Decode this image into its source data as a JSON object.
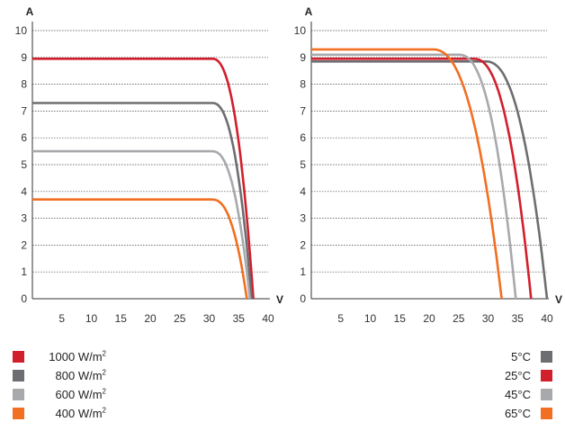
{
  "chart_data": [
    {
      "type": "line",
      "ylabel": "A",
      "xlabel": "V",
      "xlim": [
        0,
        40
      ],
      "ylim": [
        0,
        10
      ],
      "xticks": [
        "5",
        "10",
        "15",
        "20",
        "25",
        "30",
        "35",
        "40"
      ],
      "yticks": [
        "0",
        "1",
        "2",
        "3",
        "4",
        "5",
        "6",
        "7",
        "8",
        "9",
        "10"
      ],
      "grid": "horizontal dotted",
      "series": [
        {
          "name": "1000 W/m2",
          "color": "#d11f2c",
          "isc": 8.95,
          "voc": 37.5,
          "knee": 30.5
        },
        {
          "name": "800 W/m2",
          "color": "#6d6e71",
          "isc": 7.3,
          "voc": 37.2,
          "knee": 30.5
        },
        {
          "name": "600 W/m2",
          "color": "#a7a9ac",
          "isc": 5.5,
          "voc": 36.9,
          "knee": 30.5
        },
        {
          "name": "400 W/m2",
          "color": "#f26e21",
          "isc": 3.7,
          "voc": 36.4,
          "knee": 30.5
        }
      ]
    },
    {
      "type": "line",
      "ylabel": "A",
      "xlabel": "V",
      "xlim": [
        0,
        40
      ],
      "ylim": [
        0,
        10
      ],
      "xticks": [
        "5",
        "10",
        "15",
        "20",
        "25",
        "30",
        "35",
        "40"
      ],
      "yticks": [
        "0",
        "1",
        "2",
        "3",
        "4",
        "5",
        "6",
        "7",
        "8",
        "9",
        "10"
      ],
      "grid": "horizontal dotted",
      "series": [
        {
          "name": "5°C",
          "color": "#6d6e71",
          "isc": 8.85,
          "voc": 40.0,
          "knee": 29.5
        },
        {
          "name": "25°C",
          "color": "#d11f2c",
          "isc": 8.95,
          "voc": 37.3,
          "knee": 27.5
        },
        {
          "name": "45°C",
          "color": "#a7a9ac",
          "isc": 9.1,
          "voc": 34.7,
          "knee": 25.0
        },
        {
          "name": "65°C",
          "color": "#f26e21",
          "isc": 9.3,
          "voc": 32.3,
          "knee": 20.5
        }
      ]
    }
  ],
  "legend_left": [
    {
      "label": "1000 W/m",
      "sup": "2",
      "color": "#d11f2c"
    },
    {
      "label": "800 W/m",
      "sup": "2",
      "color": "#6d6e71"
    },
    {
      "label": "600 W/m",
      "sup": "2",
      "color": "#a7a9ac"
    },
    {
      "label": "400 W/m",
      "sup": "2",
      "color": "#f26e21"
    }
  ],
  "legend_right": [
    {
      "label": "5°C",
      "color": "#6d6e71"
    },
    {
      "label": "25°C",
      "color": "#d11f2c"
    },
    {
      "label": "45°C",
      "color": "#a7a9ac"
    },
    {
      "label": "65°C",
      "color": "#f26e21"
    }
  ]
}
